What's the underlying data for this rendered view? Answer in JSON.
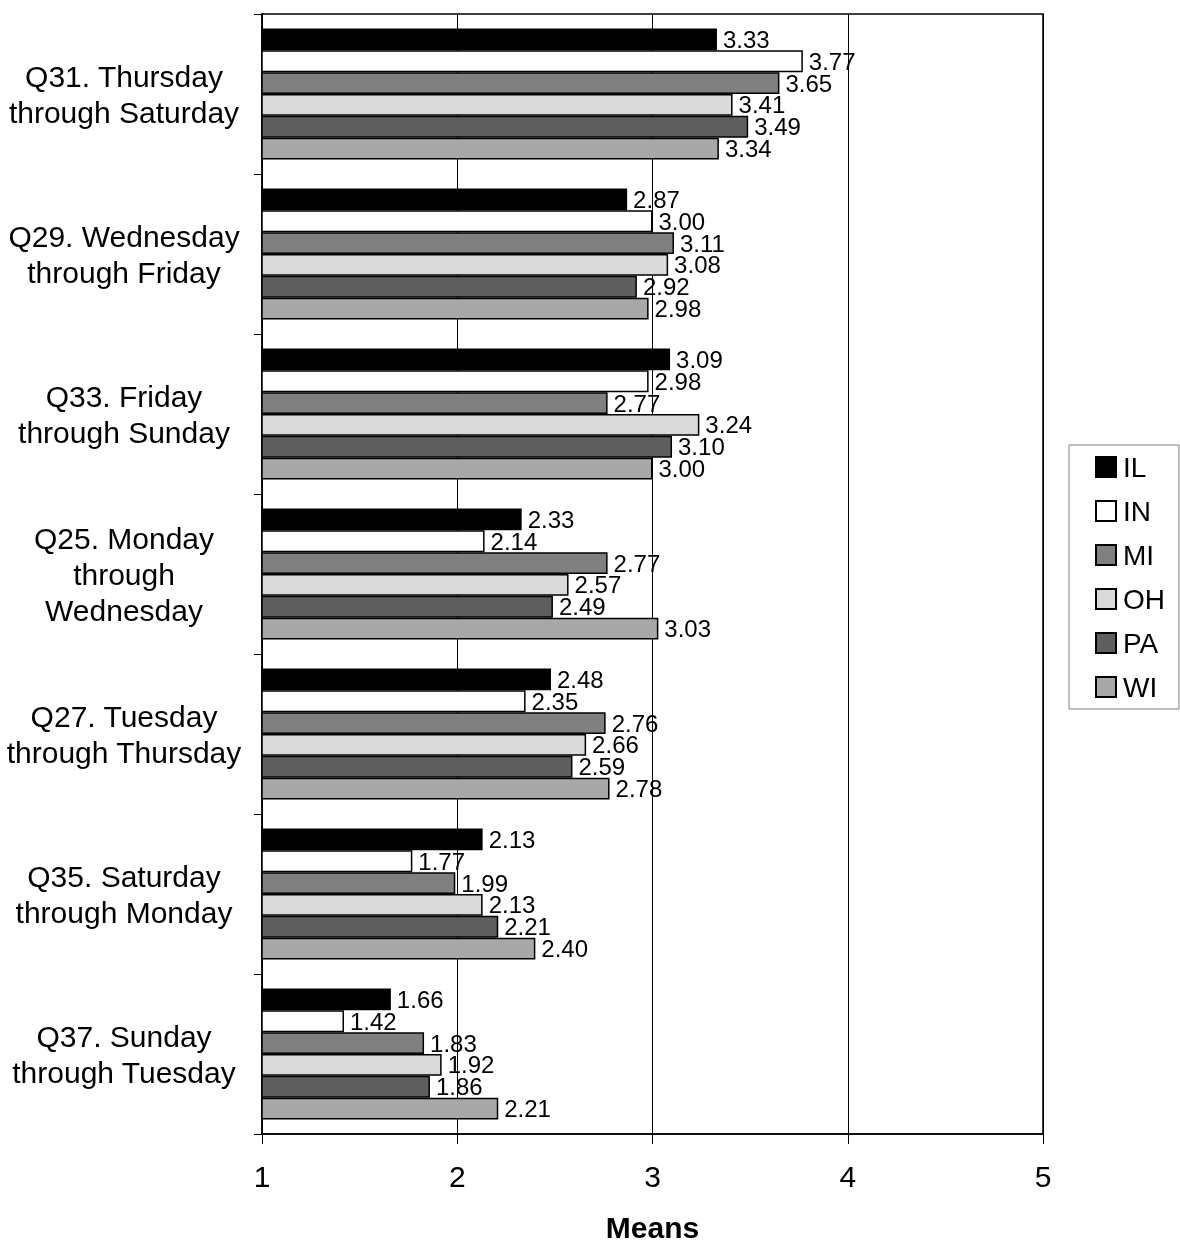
{
  "chart_data": {
    "type": "bar",
    "orientation": "horizontal",
    "xlabel": "Means",
    "categories": [
      "Q31. Thursday\nthrough Saturday",
      "Q29. Wednesday\nthrough Friday",
      "Q33. Friday\nthrough Sunday",
      "Q25. Monday\nthrough\nWednesday",
      "Q27. Tuesday\nthrough Thursday",
      "Q35. Saturday\nthrough Monday",
      "Q37. Sunday\nthrough Tuesday"
    ],
    "series": [
      {
        "name": "IL",
        "color": "#000000",
        "values": [
          3.33,
          2.87,
          3.09,
          2.33,
          2.48,
          2.13,
          1.66
        ],
        "value_labels": [
          "3.33",
          "2.87",
          "3.09",
          "2.33",
          "2.48",
          "2.13",
          "1.66"
        ]
      },
      {
        "name": "IN",
        "color": "#ffffff",
        "values": [
          3.77,
          3.0,
          2.98,
          2.14,
          2.35,
          1.77,
          1.42
        ],
        "value_labels": [
          "3.77",
          "3.00",
          "2.98",
          "2.14",
          "2.35",
          "1.77",
          "1.42"
        ]
      },
      {
        "name": "MI",
        "color": "#808080",
        "values": [
          3.65,
          3.11,
          2.77,
          2.77,
          2.76,
          1.99,
          1.83
        ],
        "value_labels": [
          "3.65",
          "3.11",
          "2.77",
          "2.77",
          "2.76",
          "1.99",
          "1.83"
        ]
      },
      {
        "name": "OH",
        "color": "#dadada",
        "values": [
          3.41,
          3.08,
          3.24,
          2.57,
          2.66,
          2.13,
          1.92
        ],
        "value_labels": [
          "3.41",
          "3.08",
          "3.24",
          "2.57",
          "2.66",
          "2.13",
          "1.92"
        ]
      },
      {
        "name": "PA",
        "color": "#5e5e5e",
        "values": [
          3.49,
          2.92,
          3.1,
          2.49,
          2.59,
          2.21,
          1.86
        ],
        "value_labels": [
          "3.49",
          "2.92",
          "3.10",
          "2.49",
          "2.59",
          "2.21",
          "1.86"
        ]
      },
      {
        "name": "WI",
        "color": "#a8a8a8",
        "values": [
          3.34,
          2.98,
          3.0,
          3.03,
          2.78,
          2.4,
          2.21
        ],
        "value_labels": [
          "3.34",
          "2.98",
          "3.00",
          "3.03",
          "2.78",
          "2.40",
          "2.21"
        ]
      }
    ],
    "xlim": [
      1,
      5
    ],
    "xticks": [
      1,
      2,
      3,
      4,
      5
    ],
    "grid": "x",
    "legend": "right"
  }
}
